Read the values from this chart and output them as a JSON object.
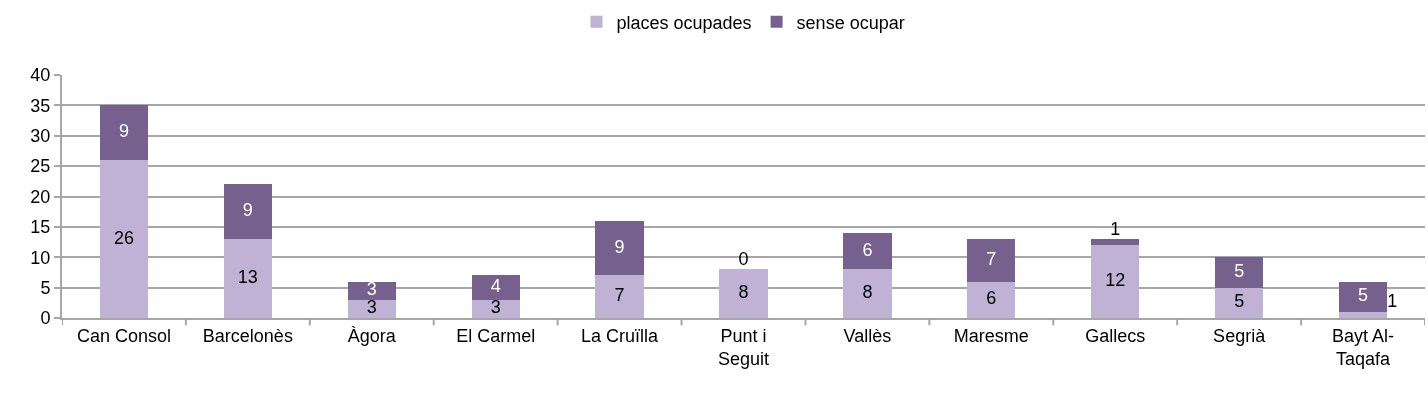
{
  "chart_data": {
    "type": "bar",
    "stacked": true,
    "categories": [
      "Can Consol",
      "Barcelonès",
      "Àgora",
      "El Carmel",
      "La Cruïlla",
      "Punt i Seguit",
      "Vallès",
      "Maresme",
      "Gallecs",
      "Segrià",
      "Bayt Al-Taqafa"
    ],
    "series": [
      {
        "name": "places ocupades",
        "color": "#c0b2d4",
        "values": [
          26,
          13,
          3,
          3,
          7,
          8,
          8,
          6,
          12,
          5,
          1
        ]
      },
      {
        "name": "sense ocupar",
        "color": "#75608e",
        "values": [
          9,
          9,
          3,
          4,
          9,
          0,
          6,
          7,
          1,
          5,
          5
        ]
      }
    ],
    "ylim": [
      0,
      40
    ],
    "yticks": [
      0,
      5,
      10,
      15,
      20,
      25,
      30,
      35,
      40
    ],
    "grid": "y",
    "legend": "top",
    "data_labels": true
  }
}
